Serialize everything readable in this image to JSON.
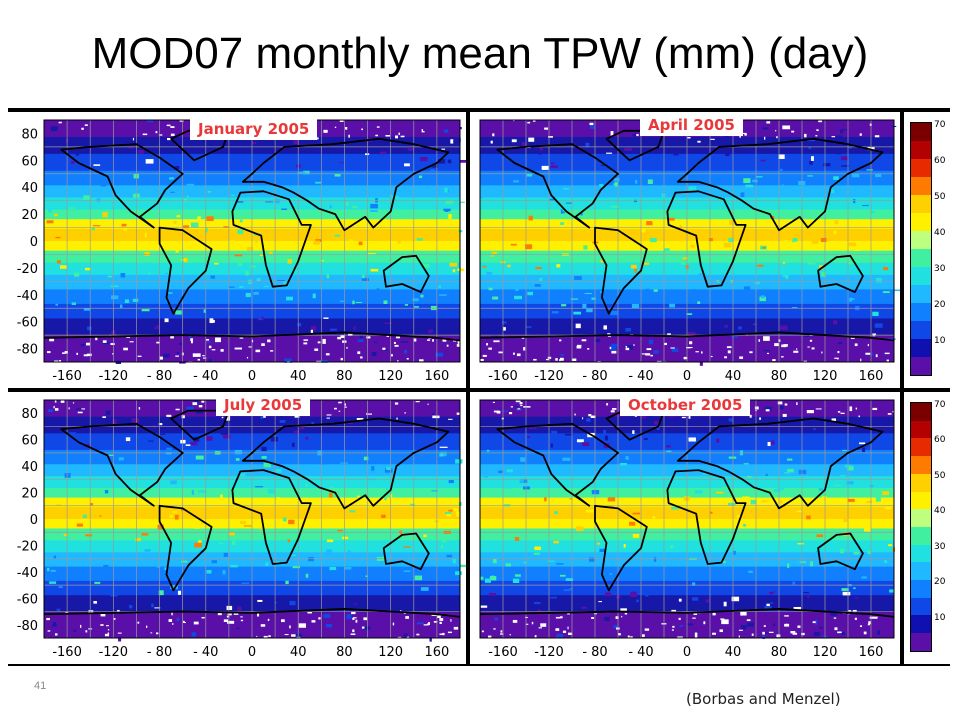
{
  "slide": {
    "title": "MOD07 monthly mean TPW (mm) (day)",
    "number": "41",
    "credit": "(Borbas and Menzel)"
  },
  "panels": [
    {
      "month": "January 2005"
    },
    {
      "month": "April 2005"
    },
    {
      "month": "July 2005"
    },
    {
      "month": "October 2005"
    }
  ],
  "axes": {
    "latitude_labels": [
      "80",
      "60",
      "40",
      "20",
      "0",
      "-20",
      "-40",
      "-60",
      "-80"
    ],
    "longitude_labels": [
      "-160",
      "-120",
      "- 80",
      "- 40",
      "0",
      "40",
      "80",
      "120",
      "160"
    ]
  },
  "colorbar": {
    "ticks": [
      "70",
      "60",
      "50",
      "40",
      "30",
      "20",
      "10"
    ],
    "colors_top_to_bottom": [
      "#7a0000",
      "#b30000",
      "#e82a00",
      "#ff7a00",
      "#ffd000",
      "#fff000",
      "#bfff80",
      "#40f0a0",
      "#20e0e0",
      "#20b8ff",
      "#1080ff",
      "#1048e8",
      "#1010b0",
      "#5a10a8"
    ]
  }
}
